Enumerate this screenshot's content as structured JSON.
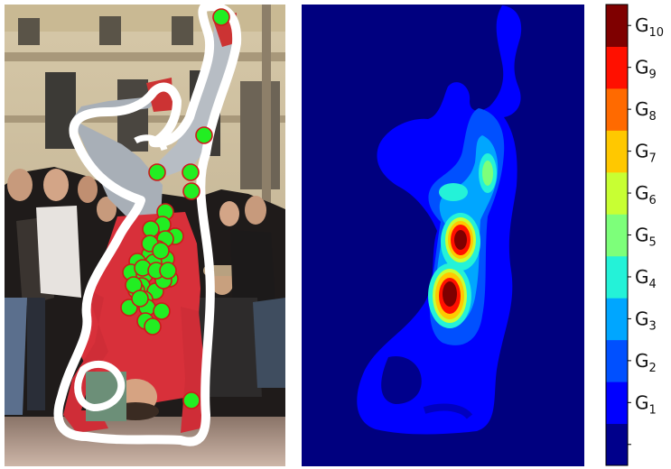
{
  "photo_panel": {
    "subject_icon": "breakdancer-headstand-figure",
    "background_icon": "building-and-crowd",
    "outline_color": "#ffffff",
    "point_fill": "#22ee22",
    "point_stroke": "#cc1a1a",
    "point_count": 37
  },
  "heatmap_panel": {
    "background_color": "#00007f",
    "levels": 10
  },
  "colorbar": {
    "colors": [
      "#00008b",
      "#0000ff",
      "#0050ff",
      "#00a6ff",
      "#24f2d8",
      "#7dff7a",
      "#c8ff33",
      "#ffc800",
      "#ff6a00",
      "#ff1000",
      "#7f0000"
    ],
    "labels": [
      {
        "base": "G",
        "sub": "1"
      },
      {
        "base": "G",
        "sub": "2"
      },
      {
        "base": "G",
        "sub": "3"
      },
      {
        "base": "G",
        "sub": "4"
      },
      {
        "base": "G",
        "sub": "5"
      },
      {
        "base": "G",
        "sub": "6"
      },
      {
        "base": "G",
        "sub": "7"
      },
      {
        "base": "G",
        "sub": "8"
      },
      {
        "base": "G",
        "sub": "9"
      },
      {
        "base": "G",
        "sub": "10"
      }
    ]
  }
}
